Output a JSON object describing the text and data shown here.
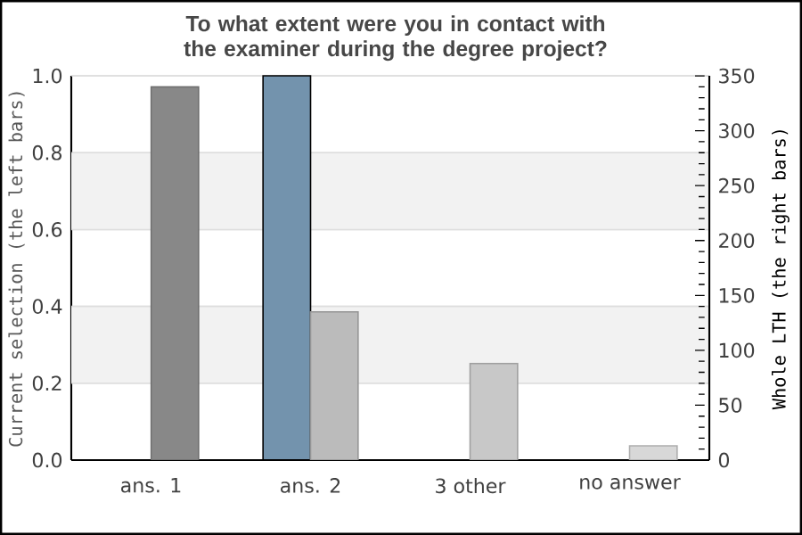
{
  "chart_data": {
    "type": "bar",
    "title": "To what extent were you in contact with the examiner during the degree project?",
    "categories": [
      "ans. 1",
      "ans. 2",
      "3 other",
      "no answer"
    ],
    "ylabel": "Current selection (the left bars)",
    "y2label": "Whole LTH (the right bars)",
    "ylim": [
      0,
      1
    ],
    "yticks": [
      {
        "value": 0,
        "label": "0.0"
      },
      {
        "value": 0.2,
        "label": "0.2"
      },
      {
        "value": 0.4,
        "label": "0.4"
      },
      {
        "value": 0.6,
        "label": "0.6"
      },
      {
        "value": 0.8,
        "label": "0.8"
      },
      {
        "value": 1,
        "label": "1.0"
      }
    ],
    "y2lim": [
      0,
      350
    ],
    "y2ticks": [
      0,
      50,
      100,
      150,
      200,
      250,
      300,
      350
    ],
    "grid": "y",
    "bands": [
      {
        "axis": "y",
        "from": 0.2,
        "to": 0.4,
        "color": "#f2f2f2"
      },
      {
        "axis": "y",
        "from": 0.6,
        "to": 0.8,
        "color": "#f2f2f2"
      }
    ],
    "series": [
      {
        "color": "#7393ad",
        "values": [
          0,
          1,
          0,
          0
        ]
      },
      {
        "axis": "y2",
        "colors": [
          "#888888",
          "#bbbbbb",
          "#c8c8c8",
          "#d8d8d8"
        ],
        "values": [
          340,
          135,
          88,
          13
        ]
      }
    ]
  }
}
